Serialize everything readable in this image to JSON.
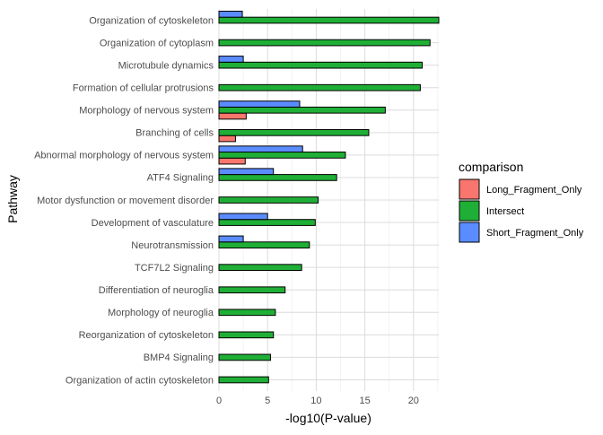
{
  "chart_data": {
    "type": "bar",
    "orientation": "horizontal",
    "xlabel": "-log10(P-value)",
    "ylabel": "Pathway",
    "xlim": [
      0,
      22.6
    ],
    "xticks": [
      0,
      5,
      10,
      15,
      20
    ],
    "grid": true,
    "legend_position": "right",
    "legend_title": "comparison",
    "categories": [
      "Organization of cytoskeleton",
      "Organization of cytoplasm",
      "Microtubule dynamics",
      "Formation of cellular protrusions",
      "Morphology of nervous system",
      "Branching of cells",
      "Abnormal morphology of nervous system",
      "ATF4 Signaling",
      "Motor dysfunction or movement disorder",
      "Development of vasculature",
      "Neurotransmission",
      "TCF7L2 Signaling",
      "Differentiation of neuroglia",
      "Morphology of neuroglia",
      "Reorganization of cytoskeleton",
      "BMP4 Signaling",
      "Organization of actin cytoskeleton"
    ],
    "series": [
      {
        "name": "Long_Fragment_Only",
        "color": "#F8766D",
        "values": [
          null,
          null,
          null,
          null,
          2.8,
          1.7,
          2.7,
          null,
          null,
          null,
          null,
          null,
          null,
          null,
          null,
          null,
          null
        ]
      },
      {
        "name": "Intersect",
        "color": "#1FAF36",
        "values": [
          22.6,
          21.7,
          20.9,
          20.7,
          17.1,
          15.4,
          13.0,
          12.1,
          10.2,
          9.9,
          9.3,
          8.5,
          6.8,
          5.8,
          5.6,
          5.3,
          5.1
        ]
      },
      {
        "name": "Short_Fragment_Only",
        "color": "#5B8CFF",
        "values": [
          2.4,
          null,
          2.5,
          null,
          8.3,
          null,
          8.6,
          5.6,
          null,
          5.0,
          2.5,
          null,
          null,
          null,
          null,
          null,
          null
        ]
      }
    ]
  }
}
